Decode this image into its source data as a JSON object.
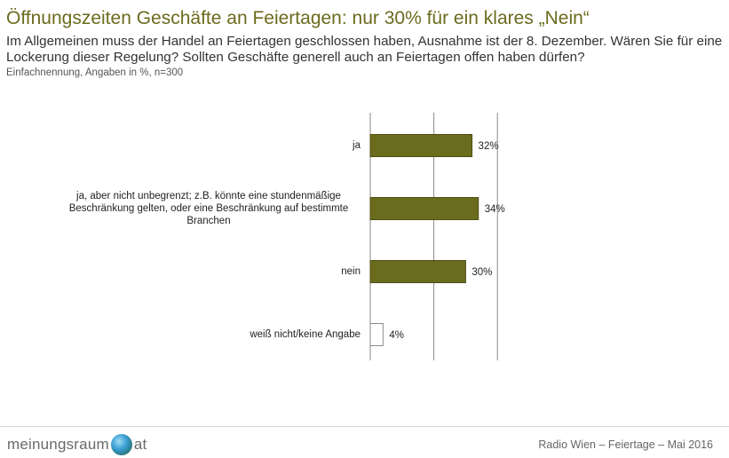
{
  "header": {
    "title": "Öffnungszeiten Geschäfte an Feiertagen: nur 30% für ein klares „Nein“",
    "question": "Im Allgemeinen muss der Handel an Feiertagen geschlossen haben, Ausnahme ist der 8. Dezember. Wären Sie für eine Lockerung dieser Regelung? Sollten Geschäfte generell auch an Feiertagen offen haben dürfen?",
    "note": "Einfachnennung, Angaben in %, n=300"
  },
  "chart_data": {
    "type": "bar",
    "orientation": "horizontal",
    "categories": [
      "ja",
      "ja, aber nicht unbegrenzt; z.B. könnte eine stundenmäßige Beschränkung gelten, oder eine Beschränkung auf bestimmte Branchen",
      "nein",
      "weiß nicht/keine Angabe"
    ],
    "values": [
      32,
      34,
      30,
      4
    ],
    "value_labels": [
      "32%",
      "34%",
      "30%",
      "4%"
    ],
    "bar_colors": [
      "#6b6b1e",
      "#6b6b1e",
      "#6b6b1e",
      "#ffffff"
    ],
    "xlim": [
      0,
      100
    ],
    "grid": true,
    "legend": "none"
  },
  "footer": {
    "logo_text_left": "meinungsraum",
    "logo_text_right": "at",
    "source": "Radio Wien – Feiertage – Mai 2016"
  }
}
